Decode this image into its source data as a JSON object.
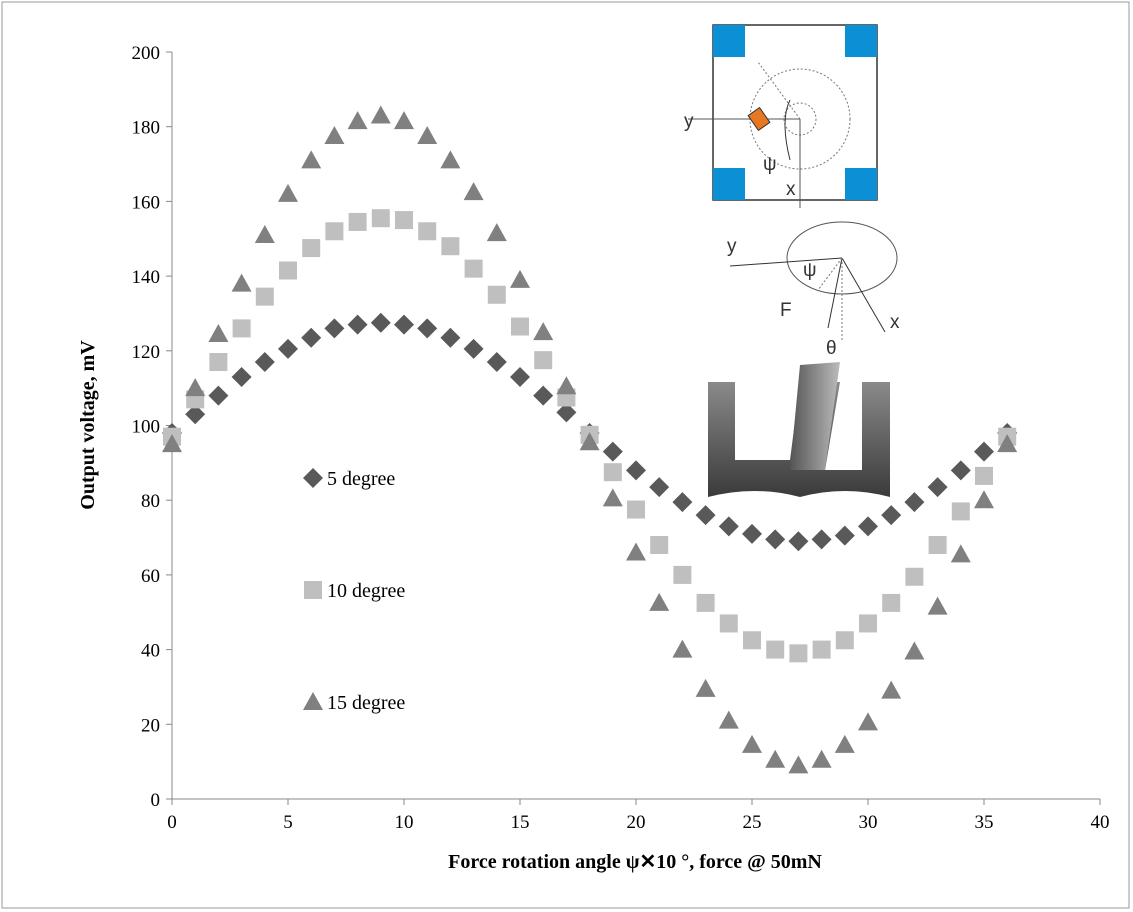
{
  "chart_data": {
    "type": "scatter",
    "x_label": "Force rotation angle ψ✕10 °, force @ 50mN",
    "y_label": "Output voltage, mV",
    "x": [
      0,
      1,
      2,
      3,
      4,
      5,
      6,
      7,
      8,
      9,
      10,
      11,
      12,
      13,
      14,
      15,
      16,
      17,
      18,
      19,
      20,
      21,
      22,
      23,
      24,
      25,
      26,
      27,
      28,
      29,
      30,
      31,
      32,
      33,
      34,
      35,
      36
    ],
    "series": [
      {
        "name": "5 degree",
        "color": "#595959",
        "marker": "diamond",
        "values": [
          98,
          103,
          108,
          113,
          117,
          120.5,
          123.5,
          126,
          127,
          127.5,
          127,
          126,
          123.5,
          120.5,
          117,
          113,
          108,
          103.5,
          98,
          93,
          88,
          83.5,
          79.5,
          76,
          73,
          71,
          69.5,
          69,
          69.5,
          70.5,
          73,
          76,
          79.5,
          83.5,
          88,
          93,
          98
        ]
      },
      {
        "name": "10 degree",
        "color": "#bfbfbf",
        "marker": "square",
        "values": [
          97,
          107,
          117,
          126,
          134.5,
          141.5,
          147.5,
          152,
          154.5,
          155.5,
          155,
          152,
          148,
          142,
          135,
          126.5,
          117.5,
          107.5,
          97.5,
          87.5,
          77.5,
          68,
          60,
          52.5,
          47,
          42.5,
          40,
          39,
          40,
          42.5,
          47,
          52.5,
          59.5,
          68,
          77,
          86.5,
          97
        ]
      },
      {
        "name": "15 degree",
        "color": "#808080",
        "marker": "triangle",
        "values": [
          95,
          110,
          124.5,
          138,
          151,
          162,
          171,
          177.5,
          181.5,
          183,
          181.5,
          177.5,
          171,
          162.5,
          151.5,
          139,
          125,
          110.5,
          95.5,
          80.5,
          66,
          52.5,
          40,
          29.5,
          21,
          14.5,
          10.5,
          9,
          10.5,
          14.5,
          20.5,
          29,
          39.5,
          51.5,
          65.5,
          80,
          95
        ]
      }
    ],
    "xlim": [
      0,
      40
    ],
    "xticks": [
      0,
      5,
      10,
      15,
      20,
      25,
      30,
      35,
      40
    ],
    "ylim": [
      0,
      200
    ],
    "yticks": [
      0,
      20,
      40,
      60,
      80,
      100,
      120,
      140,
      160,
      180,
      200
    ],
    "annotations": [
      "y",
      "ψ",
      "x",
      "y",
      "ψ",
      "F",
      "x",
      "θ"
    ]
  }
}
